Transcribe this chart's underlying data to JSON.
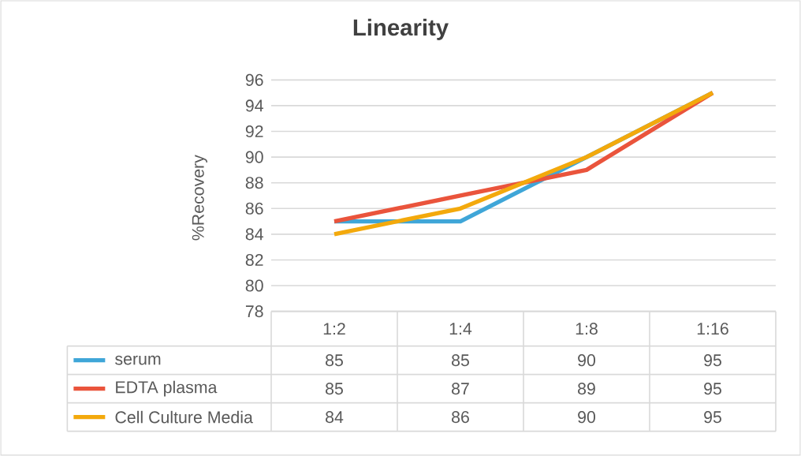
{
  "chart_data": {
    "type": "line",
    "title": "Linearity",
    "ylabel": "%Recovery",
    "categories": [
      "1:2",
      "1:4",
      "1:8",
      "1:16"
    ],
    "series": [
      {
        "name": "serum",
        "color": "#3fa6d8",
        "values": [
          85,
          85,
          90,
          95
        ]
      },
      {
        "name": "EDTA plasma",
        "color": "#ea543c",
        "values": [
          85,
          87,
          89,
          95
        ]
      },
      {
        "name": "Cell Culture Media",
        "color": "#f3a90c",
        "values": [
          84,
          86,
          90,
          95
        ]
      }
    ],
    "ylim": [
      78,
      96
    ],
    "yticks": [
      78,
      80,
      82,
      84,
      86,
      88,
      90,
      92,
      94,
      96
    ],
    "grid": "y",
    "legend": "bottom",
    "data_labels": true,
    "marker": "none",
    "line_style": "solid"
  }
}
